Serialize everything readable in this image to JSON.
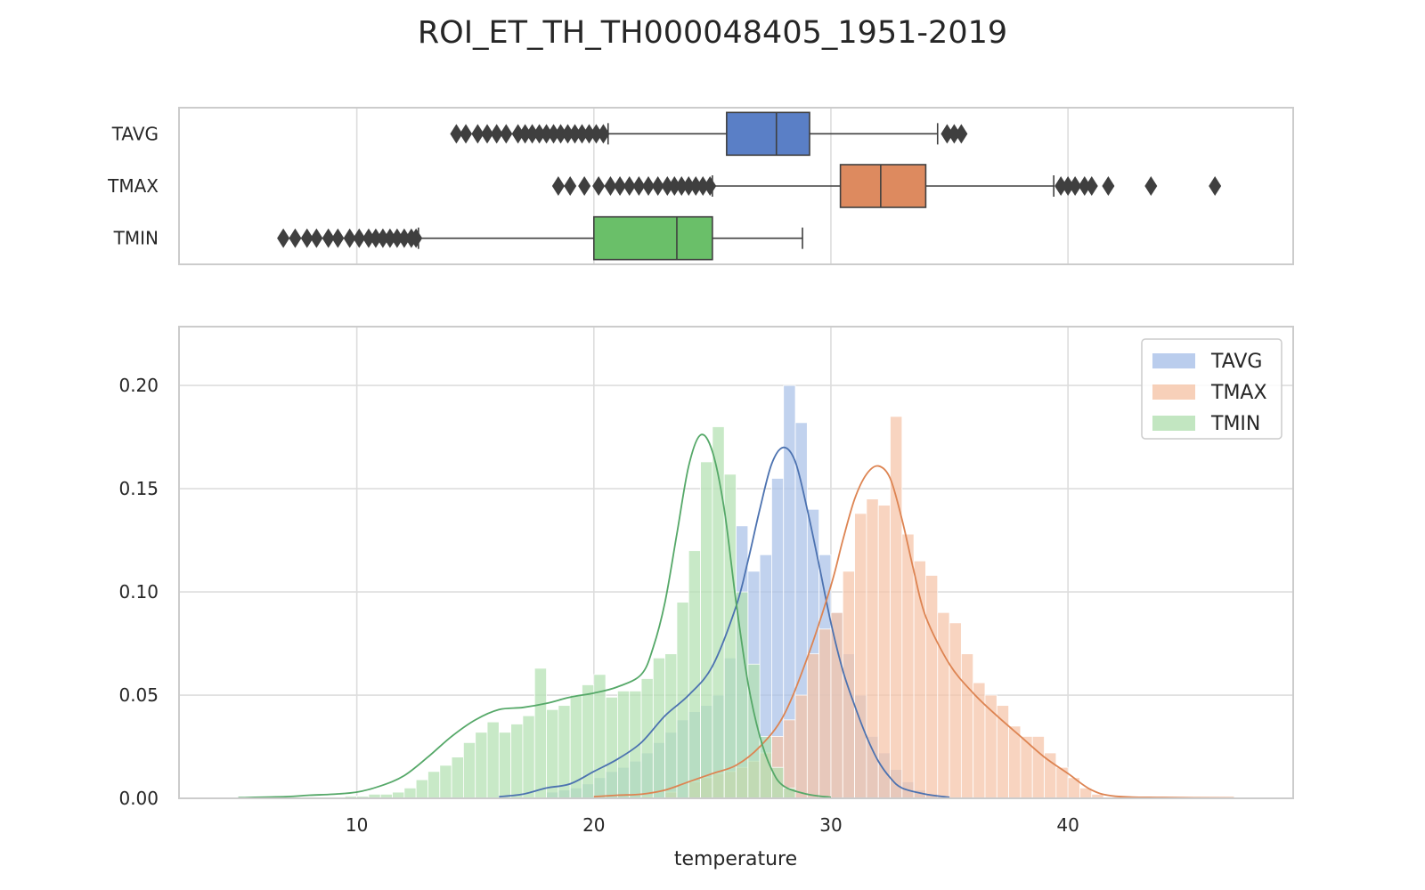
{
  "chart_data": [
    {
      "type": "boxplot",
      "title": "ROI_ET_TH_TH000048405_1951-2019",
      "xlim": [
        2.5,
        49.5
      ],
      "xticks": [
        10,
        20,
        30,
        40
      ],
      "grid": true,
      "categories": [
        "TAVG",
        "TMAX",
        "TMIN"
      ],
      "colors": [
        "#5a7fc6",
        "#dd8a5f",
        "#6abf69"
      ],
      "boxes": [
        {
          "name": "TAVG",
          "whisker_low": 20.6,
          "q1": 25.6,
          "median": 27.7,
          "q3": 29.1,
          "whisker_high": 34.5,
          "outliers": [
            14.2,
            14.6,
            15.1,
            15.5,
            15.9,
            16.3,
            16.8,
            17.1,
            17.4,
            17.7,
            18.0,
            18.3,
            18.6,
            18.9,
            19.2,
            19.5,
            19.8,
            20.1,
            20.4,
            34.9,
            35.2,
            35.5
          ]
        },
        {
          "name": "TMAX",
          "whisker_low": 25.0,
          "q1": 30.4,
          "median": 32.1,
          "q3": 34.0,
          "whisker_high": 39.4,
          "outliers": [
            18.5,
            19.0,
            19.6,
            20.2,
            20.7,
            21.1,
            21.5,
            21.9,
            22.3,
            22.7,
            23.1,
            23.4,
            23.7,
            24.0,
            24.3,
            24.6,
            24.9,
            39.7,
            40.0,
            40.3,
            40.7,
            41.0,
            41.7,
            43.5,
            46.2
          ]
        },
        {
          "name": "TMIN",
          "whisker_low": 12.6,
          "q1": 20.0,
          "median": 23.5,
          "q3": 25.0,
          "whisker_high": 28.8,
          "outliers": [
            6.9,
            7.4,
            7.9,
            8.3,
            8.8,
            9.2,
            9.7,
            10.1,
            10.5,
            10.8,
            11.1,
            11.4,
            11.7,
            12.0,
            12.3,
            12.5
          ]
        }
      ]
    },
    {
      "type": "histogram",
      "xlabel": "temperature",
      "ylabel": "",
      "xlim": [
        2.5,
        49.5
      ],
      "ylim": [
        0,
        0.2285
      ],
      "xticks": [
        10,
        20,
        30,
        40
      ],
      "yticks": [
        "0.00",
        "0.05",
        "0.10",
        "0.15",
        "0.20"
      ],
      "grid": true,
      "legend": "top-right",
      "series": [
        {
          "name": "TAVG",
          "color": "#4c72b0",
          "fill": "#a9c0e8",
          "bin_width": 0.5,
          "bins": [
            [
              18,
              0.003
            ],
            [
              18.5,
              0.004
            ],
            [
              19,
              0.005
            ],
            [
              19.5,
              0.007
            ],
            [
              20,
              0.01
            ],
            [
              20.5,
              0.013
            ],
            [
              21,
              0.015
            ],
            [
              21.5,
              0.018
            ],
            [
              22,
              0.022
            ],
            [
              22.5,
              0.027
            ],
            [
              23,
              0.032
            ],
            [
              23.5,
              0.038
            ],
            [
              24,
              0.042
            ],
            [
              24.5,
              0.045
            ],
            [
              25,
              0.05
            ],
            [
              25.5,
              0.068
            ],
            [
              26,
              0.132
            ],
            [
              26.5,
              0.11
            ],
            [
              27,
              0.118
            ],
            [
              27.5,
              0.155
            ],
            [
              28,
              0.2
            ],
            [
              28.5,
              0.182
            ],
            [
              29,
              0.14
            ],
            [
              29.5,
              0.118
            ],
            [
              30,
              0.09
            ],
            [
              30.5,
              0.07
            ],
            [
              31,
              0.05
            ],
            [
              31.5,
              0.03
            ],
            [
              32,
              0.022
            ],
            [
              32.5,
              0.014
            ],
            [
              33,
              0.008
            ],
            [
              33.5,
              0.004
            ],
            [
              34,
              0.002
            ]
          ],
          "kde": [
            [
              16,
              0.0008
            ],
            [
              17,
              0.002
            ],
            [
              18,
              0.005
            ],
            [
              19,
              0.007
            ],
            [
              20,
              0.013
            ],
            [
              21,
              0.019
            ],
            [
              22,
              0.027
            ],
            [
              23,
              0.04
            ],
            [
              24,
              0.05
            ],
            [
              25,
              0.064
            ],
            [
              26,
              0.093
            ],
            [
              26.5,
              0.115
            ],
            [
              27,
              0.14
            ],
            [
              27.5,
              0.162
            ],
            [
              28,
              0.17
            ],
            [
              28.5,
              0.163
            ],
            [
              29,
              0.14
            ],
            [
              29.5,
              0.113
            ],
            [
              30,
              0.085
            ],
            [
              30.5,
              0.062
            ],
            [
              31,
              0.045
            ],
            [
              31.5,
              0.03
            ],
            [
              32,
              0.018
            ],
            [
              32.5,
              0.01
            ],
            [
              33,
              0.005
            ],
            [
              34,
              0.002
            ],
            [
              35,
              0.0005
            ]
          ]
        },
        {
          "name": "TMAX",
          "color": "#dd8452",
          "fill": "#f5c4a7",
          "bin_width": 0.5,
          "bins": [
            [
              22,
              0.001
            ],
            [
              23,
              0.003
            ],
            [
              24,
              0.008
            ],
            [
              24.5,
              0.01
            ],
            [
              25,
              0.012
            ],
            [
              25.5,
              0.013
            ],
            [
              26,
              0.015
            ],
            [
              26.5,
              0.018
            ],
            [
              27,
              0.022
            ],
            [
              27.5,
              0.03
            ],
            [
              28,
              0.038
            ],
            [
              28.5,
              0.05
            ],
            [
              29,
              0.07
            ],
            [
              29.5,
              0.082
            ],
            [
              30,
              0.09
            ],
            [
              30.5,
              0.11
            ],
            [
              31,
              0.138
            ],
            [
              31.5,
              0.145
            ],
            [
              32,
              0.142
            ],
            [
              32.5,
              0.185
            ],
            [
              33,
              0.128
            ],
            [
              33.5,
              0.115
            ],
            [
              34,
              0.108
            ],
            [
              34.5,
              0.09
            ],
            [
              35,
              0.085
            ],
            [
              35.5,
              0.07
            ],
            [
              36,
              0.056
            ],
            [
              36.5,
              0.05
            ],
            [
              37,
              0.045
            ],
            [
              37.5,
              0.035
            ],
            [
              38,
              0.03
            ],
            [
              38.5,
              0.03
            ],
            [
              39,
              0.022
            ],
            [
              39.5,
              0.015
            ],
            [
              40,
              0.01
            ],
            [
              40.5,
              0.005
            ],
            [
              41,
              0.002
            ]
          ],
          "kde": [
            [
              20,
              0.0008
            ],
            [
              21,
              0.0015
            ],
            [
              22,
              0.002
            ],
            [
              23,
              0.004
            ],
            [
              24,
              0.008
            ],
            [
              25,
              0.012
            ],
            [
              26,
              0.016
            ],
            [
              27,
              0.025
            ],
            [
              28,
              0.04
            ],
            [
              29,
              0.068
            ],
            [
              30,
              0.103
            ],
            [
              30.5,
              0.125
            ],
            [
              31,
              0.145
            ],
            [
              31.5,
              0.157
            ],
            [
              32,
              0.161
            ],
            [
              32.5,
              0.155
            ],
            [
              33,
              0.135
            ],
            [
              33.5,
              0.11
            ],
            [
              34,
              0.088
            ],
            [
              35,
              0.065
            ],
            [
              36,
              0.051
            ],
            [
              37,
              0.04
            ],
            [
              38,
              0.03
            ],
            [
              39,
              0.02
            ],
            [
              40,
              0.012
            ],
            [
              41,
              0.004
            ],
            [
              42,
              0.001
            ],
            [
              44,
              0.0004
            ],
            [
              47,
              0.0002
            ]
          ]
        },
        {
          "name": "TMIN",
          "color": "#55a868",
          "fill": "#b3e0b1",
          "bin_width": 0.5,
          "bins": [
            [
              9.5,
              0.001
            ],
            [
              10,
              0.001
            ],
            [
              10.5,
              0.002
            ],
            [
              11,
              0.002
            ],
            [
              11.5,
              0.003
            ],
            [
              12,
              0.005
            ],
            [
              12.5,
              0.009
            ],
            [
              13,
              0.013
            ],
            [
              13.5,
              0.016
            ],
            [
              14,
              0.02
            ],
            [
              14.5,
              0.027
            ],
            [
              15,
              0.032
            ],
            [
              15.5,
              0.037
            ],
            [
              16,
              0.032
            ],
            [
              16.5,
              0.036
            ],
            [
              17,
              0.04
            ],
            [
              17.5,
              0.063
            ],
            [
              18,
              0.043
            ],
            [
              18.5,
              0.045
            ],
            [
              19,
              0.05
            ],
            [
              19.5,
              0.055
            ],
            [
              20,
              0.06
            ],
            [
              20.5,
              0.049
            ],
            [
              21,
              0.052
            ],
            [
              21.5,
              0.052
            ],
            [
              22,
              0.058
            ],
            [
              22.5,
              0.068
            ],
            [
              23,
              0.07
            ],
            [
              23.5,
              0.095
            ],
            [
              24,
              0.12
            ],
            [
              24.5,
              0.163
            ],
            [
              25,
              0.18
            ],
            [
              25.5,
              0.157
            ],
            [
              26,
              0.1
            ],
            [
              26.5,
              0.065
            ],
            [
              27,
              0.03
            ],
            [
              27.5,
              0.015
            ],
            [
              28,
              0.005
            ]
          ],
          "kde": [
            [
              5,
              0.0003
            ],
            [
              7,
              0.0008
            ],
            [
              8,
              0.0015
            ],
            [
              9,
              0.002
            ],
            [
              10,
              0.003
            ],
            [
              11,
              0.006
            ],
            [
              12,
              0.011
            ],
            [
              13,
              0.02
            ],
            [
              14,
              0.03
            ],
            [
              15,
              0.038
            ],
            [
              16,
              0.043
            ],
            [
              17,
              0.044
            ],
            [
              18,
              0.046
            ],
            [
              19,
              0.049
            ],
            [
              20,
              0.051
            ],
            [
              21,
              0.054
            ],
            [
              22,
              0.06
            ],
            [
              22.5,
              0.073
            ],
            [
              23,
              0.095
            ],
            [
              23.5,
              0.128
            ],
            [
              24,
              0.161
            ],
            [
              24.5,
              0.176
            ],
            [
              25,
              0.168
            ],
            [
              25.5,
              0.14
            ],
            [
              26,
              0.095
            ],
            [
              26.5,
              0.056
            ],
            [
              27,
              0.03
            ],
            [
              27.5,
              0.014
            ],
            [
              28,
              0.006
            ],
            [
              29,
              0.002
            ],
            [
              30,
              0.0005
            ]
          ]
        }
      ]
    }
  ]
}
